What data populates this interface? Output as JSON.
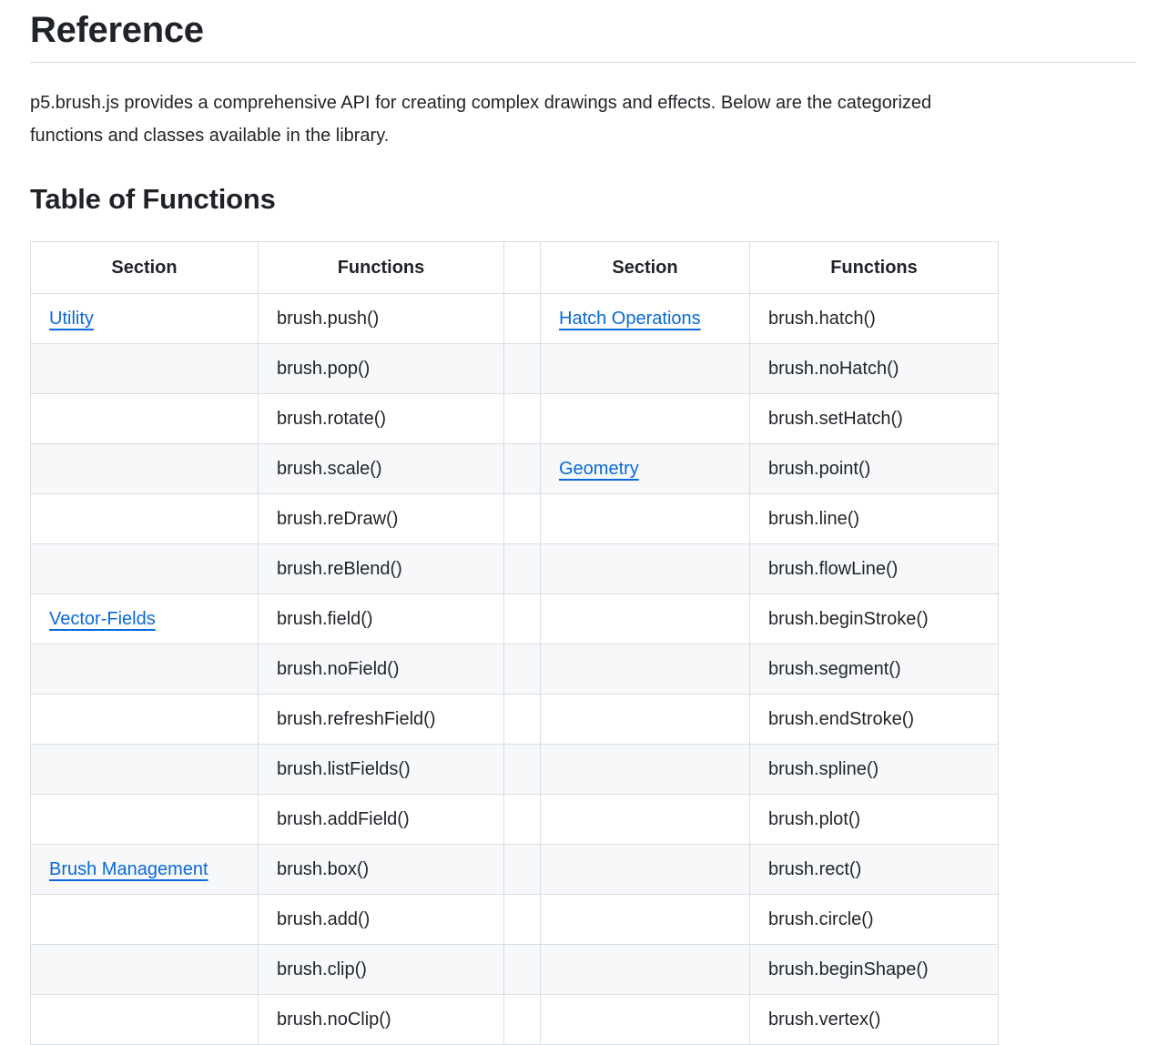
{
  "header": {
    "title": "Reference"
  },
  "intro": {
    "lines": [
      "p5.brush.js provides a comprehensive API for creating complex drawings and effects. Below are the categorized",
      "functions and classes available in the library."
    ]
  },
  "table_section": {
    "title": "Table of Functions"
  },
  "table": {
    "headers": [
      "Section",
      "Functions",
      "",
      "Section",
      "Functions"
    ],
    "colors": {
      "link": "#0969da",
      "stripe": "#f6f8fa",
      "border": "#d8dee4",
      "text": "#1f2328"
    },
    "rows": [
      {
        "cells": [
          {
            "text": "Utility",
            "link": true
          },
          {
            "text": "brush.push()"
          },
          {
            "text": "Hatch Operations",
            "link": true
          },
          {
            "text": "brush.hatch()"
          }
        ]
      },
      {
        "cells": [
          {
            "text": ""
          },
          {
            "text": "brush.pop()"
          },
          {
            "text": ""
          },
          {
            "text": "brush.noHatch()"
          }
        ]
      },
      {
        "cells": [
          {
            "text": ""
          },
          {
            "text": "brush.rotate()"
          },
          {
            "text": ""
          },
          {
            "text": "brush.setHatch()"
          }
        ]
      },
      {
        "cells": [
          {
            "text": ""
          },
          {
            "text": "brush.scale()"
          },
          {
            "text": "Geometry",
            "link": true
          },
          {
            "text": "brush.point()"
          }
        ]
      },
      {
        "cells": [
          {
            "text": ""
          },
          {
            "text": "brush.reDraw()"
          },
          {
            "text": ""
          },
          {
            "text": "brush.line()"
          }
        ]
      },
      {
        "cells": [
          {
            "text": ""
          },
          {
            "text": "brush.reBlend()"
          },
          {
            "text": ""
          },
          {
            "text": "brush.flowLine()"
          }
        ]
      },
      {
        "cells": [
          {
            "text": "Vector-Fields",
            "link": true
          },
          {
            "text": "brush.field()"
          },
          {
            "text": ""
          },
          {
            "text": "brush.beginStroke()"
          }
        ]
      },
      {
        "cells": [
          {
            "text": ""
          },
          {
            "text": "brush.noField()"
          },
          {
            "text": ""
          },
          {
            "text": "brush.segment()"
          }
        ]
      },
      {
        "cells": [
          {
            "text": ""
          },
          {
            "text": "brush.refreshField()"
          },
          {
            "text": ""
          },
          {
            "text": "brush.endStroke()"
          }
        ]
      },
      {
        "cells": [
          {
            "text": ""
          },
          {
            "text": "brush.listFields()"
          },
          {
            "text": ""
          },
          {
            "text": "brush.spline()"
          }
        ]
      },
      {
        "cells": [
          {
            "text": ""
          },
          {
            "text": "brush.addField()"
          },
          {
            "text": ""
          },
          {
            "text": "brush.plot()"
          }
        ]
      },
      {
        "cells": [
          {
            "text": "Brush Management",
            "link": true
          },
          {
            "text": "brush.box()"
          },
          {
            "text": ""
          },
          {
            "text": "brush.rect()"
          }
        ]
      },
      {
        "cells": [
          {
            "text": ""
          },
          {
            "text": "brush.add()"
          },
          {
            "text": ""
          },
          {
            "text": "brush.circle()"
          }
        ]
      },
      {
        "cells": [
          {
            "text": ""
          },
          {
            "text": "brush.clip()"
          },
          {
            "text": ""
          },
          {
            "text": "brush.beginShape()"
          }
        ]
      },
      {
        "cells": [
          {
            "text": ""
          },
          {
            "text": "brush.noClip()"
          },
          {
            "text": ""
          },
          {
            "text": "brush.vertex()"
          }
        ]
      }
    ]
  }
}
